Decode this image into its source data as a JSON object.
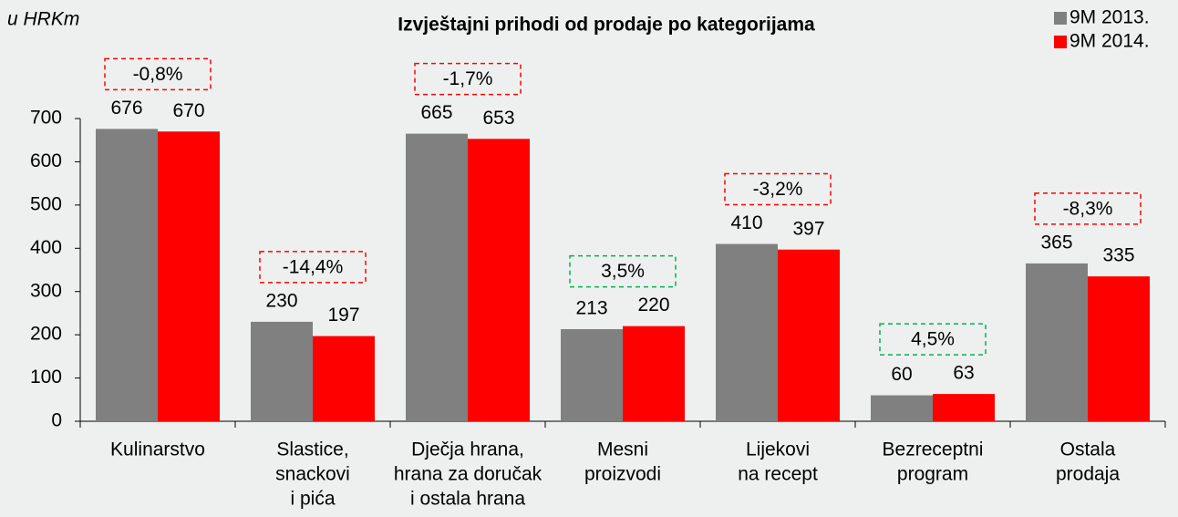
{
  "chart_data": {
    "type": "bar",
    "title": "Izvještajni prihodi od prodaje po kategorijama",
    "unit_label": "u HRKm",
    "categories": [
      [
        "Kulinarstvo"
      ],
      [
        "Slastice,",
        "snackovi",
        "i pića"
      ],
      [
        "Dječja hrana,",
        "hrana za doručak",
        "i ostala hrana"
      ],
      [
        "Mesni",
        "proizvodi"
      ],
      [
        "Lijekovi",
        "na recept"
      ],
      [
        "Bezreceptni",
        "program"
      ],
      [
        "Ostala",
        "prodaja"
      ]
    ],
    "series": [
      {
        "name": "9M 2013.",
        "color": "#808080",
        "values": [
          676,
          230,
          665,
          213,
          410,
          60,
          365
        ]
      },
      {
        "name": "9M 2014.",
        "color": "#ff0000",
        "values": [
          670,
          197,
          653,
          220,
          397,
          63,
          335
        ]
      }
    ],
    "annotations": [
      {
        "text": "-0,8%",
        "color": "#ff0000"
      },
      {
        "text": "-14,4%",
        "color": "#ff0000"
      },
      {
        "text": "-1,7%",
        "color": "#ff0000"
      },
      {
        "text": "3,5%",
        "color": "#00b050"
      },
      {
        "text": "-3,2%",
        "color": "#ff0000"
      },
      {
        "text": "4,5%",
        "color": "#00b050"
      },
      {
        "text": "-8,3%",
        "color": "#ff0000"
      }
    ],
    "ylim": [
      0,
      700
    ],
    "yticks": [
      0,
      100,
      200,
      300,
      400,
      500,
      600,
      700
    ],
    "grid": false,
    "legend": "top-right"
  }
}
